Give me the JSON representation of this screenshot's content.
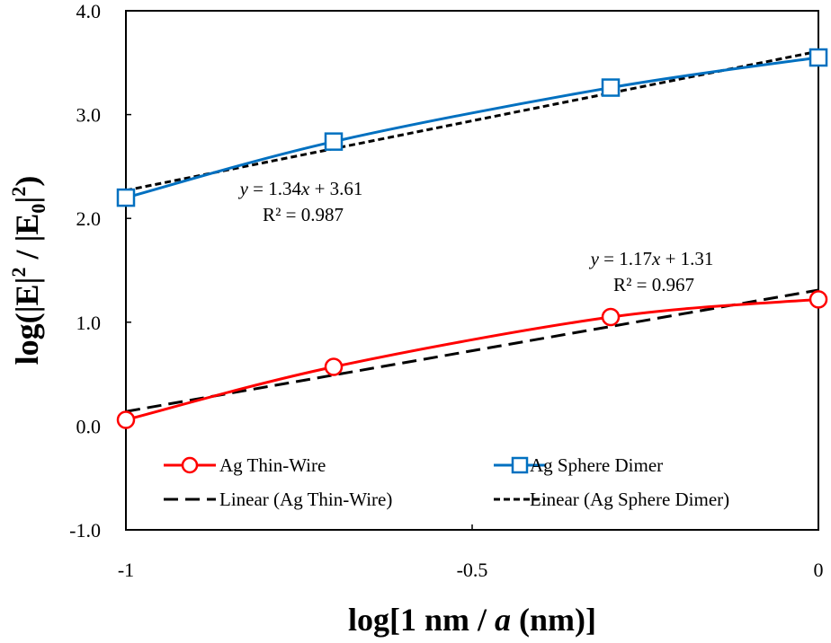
{
  "chart_data": {
    "type": "line",
    "xlabel_parts": [
      "log[1 nm / ",
      "a",
      " (nm)]"
    ],
    "ylabel_parts": [
      "log(|E|",
      "2",
      " / |E",
      "0",
      "|",
      "2",
      ")"
    ],
    "xlim": [
      -1,
      0
    ],
    "ylim": [
      -1.0,
      4.0
    ],
    "x_ticks": [
      -1,
      -0.5,
      0
    ],
    "x_tick_labels": [
      "-1",
      "-0.5",
      "0"
    ],
    "y_ticks": [
      -1.0,
      0.0,
      1.0,
      2.0,
      3.0,
      4.0
    ],
    "y_tick_labels": [
      "-1.0",
      "0.0",
      "1.0",
      "2.0",
      "3.0",
      "4.0"
    ],
    "grid": false,
    "series": [
      {
        "name": "Ag Thin-Wire",
        "color": "#ff0000",
        "marker": "circle",
        "x": [
          -1,
          -0.7,
          -0.3,
          0
        ],
        "y": [
          0.06,
          0.57,
          1.05,
          1.22
        ],
        "trendline": {
          "legend": "Linear (Ag Thin-Wire)",
          "slope": 1.17,
          "intercept": 1.31,
          "style": "long-dash",
          "eq_parts": [
            "y",
            " = 1.17",
            "x",
            " + 1.31"
          ],
          "r2_parts": [
            "R",
            "²",
            " = 0.967"
          ]
        }
      },
      {
        "name": "Ag Sphere Dimer",
        "color": "#0070c0",
        "marker": "square",
        "x": [
          -1,
          -0.7,
          -0.3,
          0
        ],
        "y": [
          2.2,
          2.74,
          3.26,
          3.55
        ],
        "trendline": {
          "legend": "Linear (Ag Sphere Dimer)",
          "slope": 1.34,
          "intercept": 3.61,
          "style": "short-dash",
          "eq_parts": [
            "y",
            " = 1.34",
            "x",
            " + 3.61"
          ],
          "r2_parts": [
            "R",
            "²",
            " = 0.987"
          ]
        }
      }
    ]
  }
}
